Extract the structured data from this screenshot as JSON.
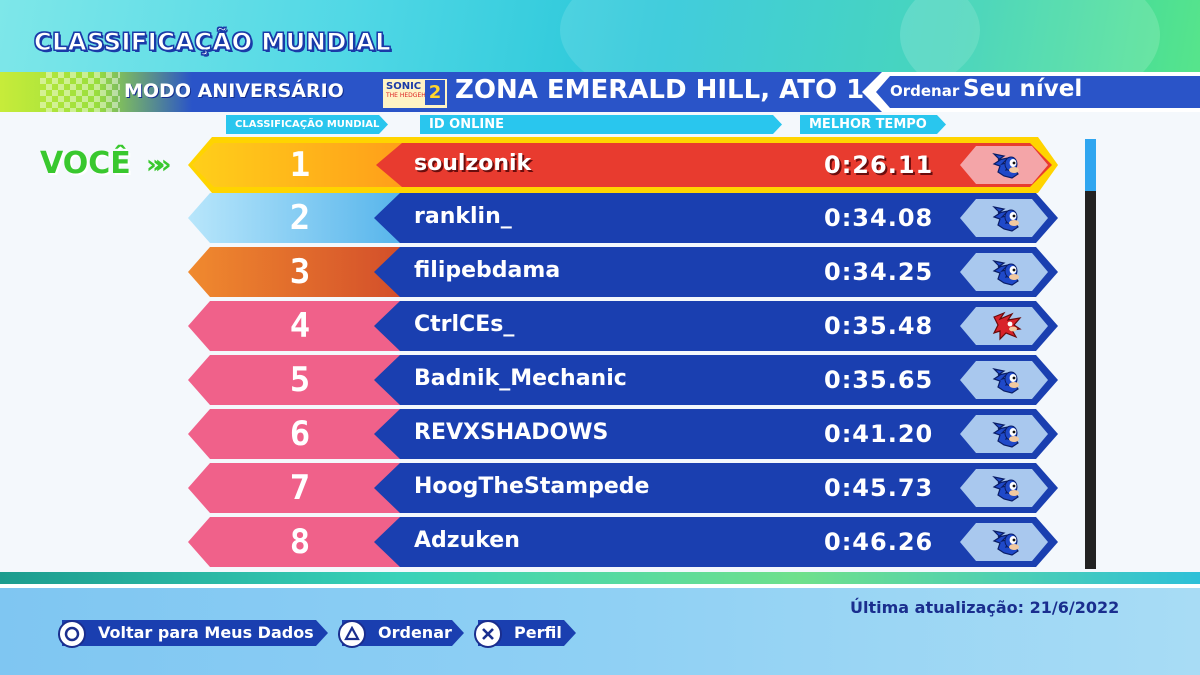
{
  "header": {
    "title": "CLASSIFICAÇÃO MUNDIAL",
    "mode": "MODO ANIVERSÁRIO",
    "game_logo": {
      "line1": "SONIC",
      "line2": "THE HEDGEHOG",
      "number": "2"
    },
    "stage": "ZONA EMERALD HILL, ATO 1",
    "sort_label": "Ordenar",
    "sort_value": "Seu nível"
  },
  "columns": {
    "rank": "CLASSIFICAÇÃO MUNDIAL",
    "id": "ID ONLINE",
    "time": "MELHOR TEMPO"
  },
  "you_label": "VOCÊ",
  "you_arrows": "»»",
  "rows": [
    {
      "rank": "1",
      "name": "soulzonik",
      "time": "0:26.11",
      "character": "sonic",
      "rank_color": "#ffb300",
      "you": true
    },
    {
      "rank": "2",
      "name": "ranklin_",
      "time": "0:34.08",
      "character": "sonic",
      "rank_color": "#7fc6f2"
    },
    {
      "rank": "3",
      "name": "filipebdama",
      "time": "0:34.25",
      "character": "sonic",
      "rank_color": "#e8622a"
    },
    {
      "rank": "4",
      "name": "CtrlCEs_",
      "time": "0:35.48",
      "character": "knuckles",
      "rank_color": "#f0618a"
    },
    {
      "rank": "5",
      "name": "Badnik_Mechanic",
      "time": "0:35.65",
      "character": "sonic",
      "rank_color": "#f0618a"
    },
    {
      "rank": "6",
      "name": "REVXSHADOWS",
      "time": "0:41.20",
      "character": "sonic",
      "rank_color": "#f0618a"
    },
    {
      "rank": "7",
      "name": "HoogTheStampede",
      "time": "0:45.73",
      "character": "sonic",
      "rank_color": "#f0618a"
    },
    {
      "rank": "8",
      "name": "Adzuken",
      "time": "0:46.26",
      "character": "sonic",
      "rank_color": "#f0618a"
    }
  ],
  "footer": {
    "last_update": "Última atualização: 21/6/2022",
    "controls": [
      {
        "icon": "circle-button-icon",
        "label": "Voltar para Meus Dados"
      },
      {
        "icon": "triangle-button-icon",
        "label": "Ordenar"
      },
      {
        "icon": "cross-button-icon",
        "label": "Perfil"
      }
    ]
  },
  "colors": {
    "row_blue": "#1a3fb0",
    "highlight_red": "#e83b2f",
    "highlight_gold": "#ffd400",
    "you_green": "#39c82e"
  }
}
